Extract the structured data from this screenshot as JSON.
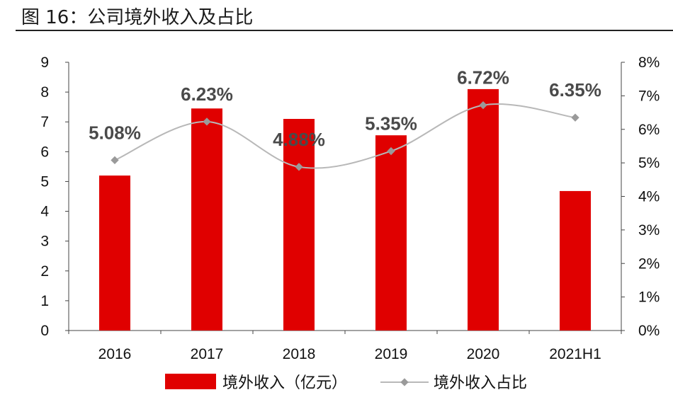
{
  "figure": {
    "title": "图 16：公司境外收入及占比"
  },
  "chart_data": {
    "type": "bar",
    "categories": [
      "2016",
      "2017",
      "2018",
      "2019",
      "2020",
      "2021H1"
    ],
    "series": [
      {
        "name": "境外收入（亿元）",
        "type": "bar",
        "axis": "left",
        "color": "#e00000",
        "values": [
          5.2,
          7.45,
          7.1,
          6.55,
          8.1,
          4.68
        ]
      },
      {
        "name": "境外收入占比",
        "type": "line",
        "axis": "right",
        "color": "#b8b8b8",
        "values": [
          5.08,
          6.23,
          4.88,
          5.35,
          6.72,
          6.35
        ],
        "labels": [
          "5.08%",
          "6.23%",
          "4.88%",
          "5.35%",
          "6.72%",
          "6.35%"
        ]
      }
    ],
    "y_left": {
      "min": 0,
      "max": 9,
      "ticks": [
        "0",
        "1",
        "2",
        "3",
        "4",
        "5",
        "6",
        "7",
        "8",
        "9"
      ]
    },
    "y_right": {
      "min": 0,
      "max": 8,
      "ticks": [
        "0%",
        "1%",
        "2%",
        "3%",
        "4%",
        "5%",
        "6%",
        "7%",
        "8%"
      ]
    },
    "grid": false,
    "legend_position": "bottom"
  }
}
